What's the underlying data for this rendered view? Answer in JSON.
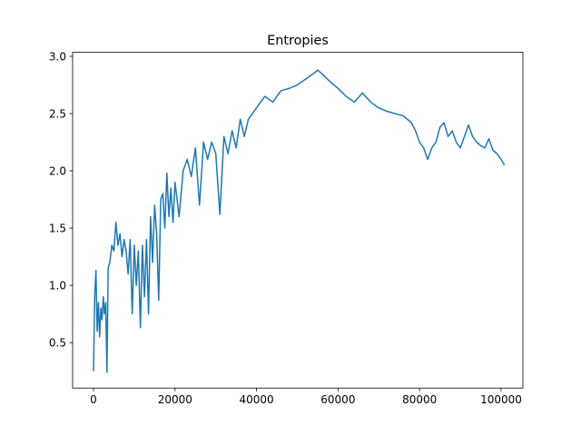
{
  "chart_data": {
    "type": "line",
    "title": "Entropies",
    "color": "#1f77b4",
    "x": [
      0,
      300,
      600,
      900,
      1200,
      1500,
      1800,
      2100,
      2400,
      2700,
      3000,
      3300,
      3600,
      4000,
      4500,
      5000,
      5500,
      6000,
      6500,
      7000,
      7500,
      8000,
      8500,
      9000,
      9500,
      10000,
      10500,
      11000,
      11500,
      12000,
      12500,
      13000,
      13500,
      14000,
      14500,
      15000,
      15500,
      16000,
      16500,
      17000,
      17500,
      18000,
      18500,
      19000,
      19500,
      20000,
      21000,
      22000,
      23000,
      24000,
      25000,
      26000,
      27000,
      28000,
      29000,
      30000,
      31000,
      32000,
      33000,
      34000,
      35000,
      36000,
      37000,
      38000,
      39000,
      40000,
      42000,
      44000,
      46000,
      48000,
      50000,
      52000,
      54000,
      55000,
      56000,
      58000,
      60000,
      62000,
      64000,
      66000,
      68000,
      70000,
      72000,
      74000,
      76000,
      78000,
      79000,
      80000,
      81000,
      82000,
      83000,
      84000,
      85000,
      86000,
      87000,
      88000,
      89000,
      90000,
      91000,
      92000,
      93000,
      94000,
      95000,
      96000,
      97000,
      98000,
      99000,
      100000,
      100800
    ],
    "values": [
      0.25,
      0.9,
      1.13,
      0.6,
      0.85,
      0.55,
      0.8,
      0.7,
      0.9,
      0.75,
      0.85,
      0.24,
      1.15,
      1.2,
      1.35,
      1.3,
      1.55,
      1.35,
      1.45,
      1.25,
      1.4,
      1.3,
      1.1,
      1.4,
      0.75,
      1.35,
      1.0,
      1.3,
      0.63,
      1.35,
      0.9,
      1.4,
      0.75,
      1.6,
      1.2,
      1.7,
      1.45,
      0.87,
      1.75,
      1.8,
      1.5,
      1.98,
      1.6,
      1.85,
      1.55,
      1.9,
      1.6,
      2.0,
      2.1,
      1.95,
      2.2,
      1.7,
      2.25,
      2.1,
      2.25,
      2.15,
      1.62,
      2.3,
      2.15,
      2.35,
      2.2,
      2.45,
      2.3,
      2.45,
      2.5,
      2.55,
      2.65,
      2.6,
      2.7,
      2.72,
      2.75,
      2.8,
      2.85,
      2.88,
      2.85,
      2.78,
      2.72,
      2.65,
      2.6,
      2.68,
      2.6,
      2.55,
      2.52,
      2.5,
      2.48,
      2.42,
      2.35,
      2.25,
      2.2,
      2.1,
      2.2,
      2.25,
      2.38,
      2.42,
      2.3,
      2.35,
      2.25,
      2.2,
      2.3,
      2.4,
      2.3,
      2.25,
      2.22,
      2.2,
      2.28,
      2.18,
      2.15,
      2.1,
      2.05
    ],
    "xlim": [
      -5120,
      105350
    ],
    "ylim": [
      0.103,
      3.035
    ],
    "xticks": [
      0,
      20000,
      40000,
      60000,
      80000,
      100000
    ],
    "yticks": [
      {
        "value": 0.5,
        "label": "0.5"
      },
      {
        "value": 1.0,
        "label": "1.0"
      },
      {
        "value": 1.5,
        "label": "1.5"
      },
      {
        "value": 2.0,
        "label": "2.0"
      },
      {
        "value": 2.5,
        "label": "2.5"
      },
      {
        "value": 3.0,
        "label": "3.0"
      }
    ]
  }
}
